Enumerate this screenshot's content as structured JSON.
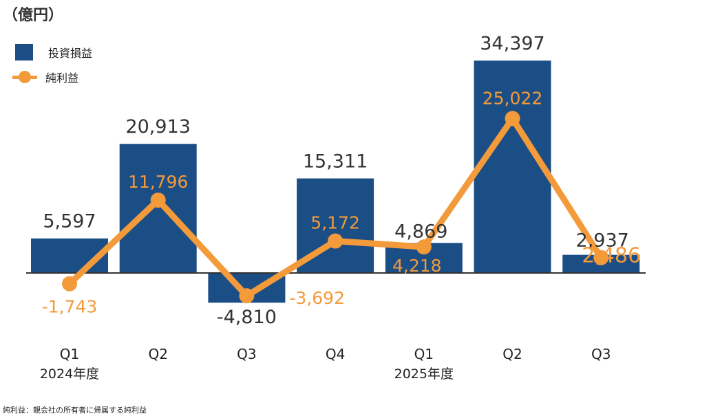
{
  "unit_label": "（億円）",
  "legend": {
    "bar_label": "投資損益",
    "line_label": "純利益"
  },
  "footnote": "純利益：親会社の所有者に帰属する純利益",
  "colors": {
    "bar": "#1c4e86",
    "line": "#f39a3a",
    "axis": "#333333",
    "bar_text": "#333333",
    "line_text": "#f39a3a"
  },
  "chart_data": {
    "type": "bar",
    "categories": [
      "Q1",
      "Q2",
      "Q3",
      "Q4",
      "Q1",
      "Q2",
      "Q3"
    ],
    "groups": [
      {
        "label": "2024年度",
        "under_category_index": 0
      },
      {
        "label": "2025年度",
        "under_category_index": 4
      }
    ],
    "series": [
      {
        "name": "投資損益",
        "type": "bar",
        "values": [
          5597,
          20913,
          -4810,
          15311,
          4869,
          34397,
          2937
        ],
        "labels": [
          "5,597",
          "20,913",
          "-4,810",
          "15,311",
          "4,869",
          "34,397",
          "2,937"
        ]
      },
      {
        "name": "純利益",
        "type": "line",
        "values": [
          -1743,
          11796,
          -3692,
          5172,
          4218,
          25022,
          2486
        ],
        "labels": [
          "-1,743",
          "11,796",
          "-3,692",
          "5,172",
          "4,218",
          "25,022",
          "2,486"
        ]
      }
    ],
    "legend_position": "top-left",
    "grid": false
  }
}
